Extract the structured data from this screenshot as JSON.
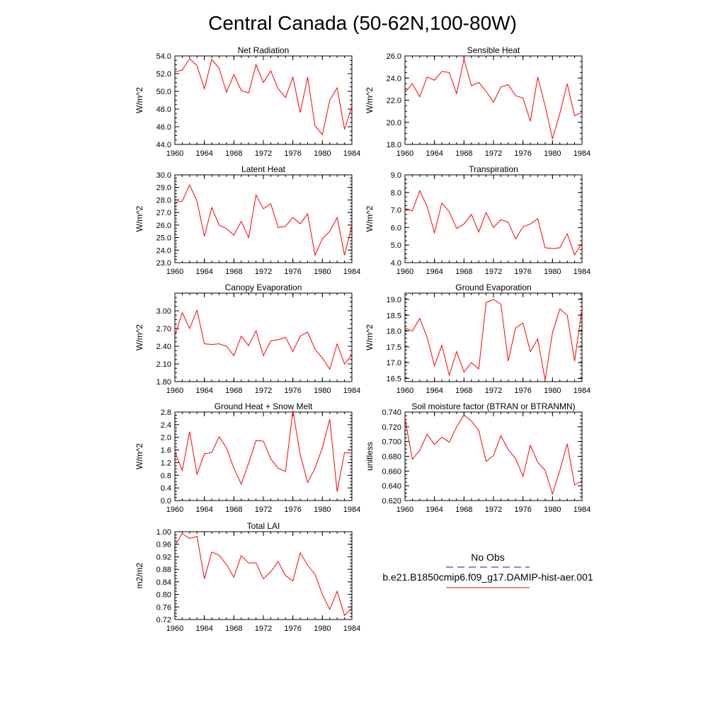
{
  "page": {
    "title": "Central Canada (50-62N,100-80W)"
  },
  "legend": {
    "obs_label": "No Obs",
    "obs_color": "#4040c0",
    "model_label": "b.e21.B1850cmip6.f09_g17.DAMIP-hist-aer.001",
    "model_color": "#ff0000"
  },
  "chart_data": [
    {
      "type": "line",
      "title": "Net Radiation",
      "ylabel": "W/m^2",
      "xlim": [
        1960,
        1984
      ],
      "ylim": [
        44.0,
        54.0
      ],
      "xticks": [
        "1960",
        "1964",
        "1968",
        "1972",
        "1976",
        "1980",
        "1984"
      ],
      "yticks": [
        "44.0",
        "46.0",
        "48.0",
        "50.0",
        "52.0",
        "54.0"
      ],
      "series": [
        {
          "color": "#ff0000",
          "x": [
            1960,
            1961,
            1962,
            1963,
            1964,
            1965,
            1966,
            1967,
            1968,
            1969,
            1970,
            1971,
            1972,
            1973,
            1974,
            1975,
            1976,
            1977,
            1978,
            1979,
            1980,
            1981,
            1982,
            1983,
            1984
          ],
          "values": [
            52.2,
            52.4,
            53.7,
            52.9,
            50.3,
            53.6,
            52.6,
            49.9,
            51.9,
            50.1,
            49.8,
            53.0,
            51.0,
            52.3,
            50.3,
            49.3,
            51.6,
            47.6,
            51.6,
            46.1,
            45.1,
            49.0,
            50.4,
            45.7,
            48.3
          ]
        }
      ]
    },
    {
      "type": "line",
      "title": "Sensible Heat",
      "ylabel": "W/m^2",
      "xlim": [
        1960,
        1984
      ],
      "ylim": [
        18.0,
        26.0
      ],
      "xticks": [
        "1960",
        "1964",
        "1968",
        "1972",
        "1976",
        "1980",
        "1984"
      ],
      "yticks": [
        "18.0",
        "20.0",
        "22.0",
        "24.0",
        "26.0"
      ],
      "series": [
        {
          "color": "#ff0000",
          "x": [
            1960,
            1961,
            1962,
            1963,
            1964,
            1965,
            1966,
            1967,
            1968,
            1969,
            1970,
            1971,
            1972,
            1973,
            1974,
            1975,
            1976,
            1977,
            1978,
            1979,
            1980,
            1981,
            1982,
            1983,
            1984
          ],
          "values": [
            22.7,
            23.5,
            22.3,
            24.1,
            23.8,
            24.6,
            24.5,
            22.6,
            25.7,
            23.3,
            23.6,
            22.8,
            21.8,
            23.2,
            23.4,
            22.4,
            22.2,
            20.1,
            24.1,
            21.5,
            18.5,
            20.8,
            23.5,
            20.6,
            20.9
          ]
        }
      ]
    },
    {
      "type": "line",
      "title": "Latent Heat",
      "ylabel": "W/m^2",
      "xlim": [
        1960,
        1984
      ],
      "ylim": [
        23.0,
        30.0
      ],
      "xticks": [
        "1960",
        "1964",
        "1968",
        "1972",
        "1976",
        "1980",
        "1984"
      ],
      "yticks": [
        "23.0",
        "24.0",
        "25.0",
        "26.0",
        "27.0",
        "28.0",
        "29.0",
        "30.0"
      ],
      "series": [
        {
          "color": "#ff0000",
          "x": [
            1960,
            1961,
            1962,
            1963,
            1964,
            1965,
            1966,
            1967,
            1968,
            1969,
            1970,
            1971,
            1972,
            1973,
            1974,
            1975,
            1976,
            1977,
            1978,
            1979,
            1980,
            1981,
            1982,
            1983,
            1984
          ],
          "values": [
            27.8,
            27.9,
            29.2,
            27.9,
            25.1,
            27.4,
            26.0,
            25.7,
            25.2,
            26.3,
            25.0,
            28.4,
            27.3,
            27.7,
            25.8,
            25.9,
            26.6,
            26.1,
            26.9,
            23.6,
            24.9,
            25.5,
            26.6,
            23.6,
            26.0
          ]
        }
      ]
    },
    {
      "type": "line",
      "title": "Transpiration",
      "ylabel": "W/m^2",
      "xlim": [
        1960,
        1984
      ],
      "ylim": [
        4.0,
        9.0
      ],
      "xticks": [
        "1960",
        "1964",
        "1968",
        "1972",
        "1976",
        "1980",
        "1984"
      ],
      "yticks": [
        "4.0",
        "5.0",
        "6.0",
        "7.0",
        "8.0",
        "9.0"
      ],
      "series": [
        {
          "color": "#ff0000",
          "x": [
            1960,
            1961,
            1962,
            1963,
            1964,
            1965,
            1966,
            1967,
            1968,
            1969,
            1970,
            1971,
            1972,
            1973,
            1974,
            1975,
            1976,
            1977,
            1978,
            1979,
            1980,
            1981,
            1982,
            1983,
            1984
          ],
          "values": [
            7.1,
            6.95,
            8.1,
            7.2,
            5.7,
            7.4,
            6.9,
            5.95,
            6.2,
            6.75,
            5.75,
            6.85,
            6.0,
            6.45,
            6.3,
            5.35,
            6.05,
            6.2,
            6.5,
            4.85,
            4.8,
            4.85,
            5.65,
            4.45,
            5.1
          ]
        }
      ]
    },
    {
      "type": "line",
      "title": "Canopy Evaporation",
      "ylabel": "W/m^2",
      "xlim": [
        1960,
        1984
      ],
      "ylim": [
        1.8,
        3.3
      ],
      "xticks": [
        "1960",
        "1964",
        "1968",
        "1972",
        "1976",
        "1980",
        "1984"
      ],
      "yticks": [
        "1.80",
        "2.10",
        "2.40",
        "2.70",
        "3.00"
      ],
      "series": [
        {
          "color": "#ff0000",
          "x": [
            1960,
            1961,
            1962,
            1963,
            1964,
            1965,
            1966,
            1967,
            1968,
            1969,
            1970,
            1971,
            1972,
            1973,
            1974,
            1975,
            1976,
            1977,
            1978,
            1979,
            1980,
            1981,
            1982,
            1983,
            1984
          ],
          "values": [
            2.58,
            2.97,
            2.7,
            3.01,
            2.44,
            2.43,
            2.44,
            2.4,
            2.24,
            2.57,
            2.41,
            2.66,
            2.24,
            2.49,
            2.51,
            2.55,
            2.31,
            2.57,
            2.64,
            2.35,
            2.2,
            2.01,
            2.44,
            2.1,
            2.25
          ]
        }
      ]
    },
    {
      "type": "line",
      "title": "Ground Evaporation",
      "ylabel": "W/m^2",
      "xlim": [
        1960,
        1984
      ],
      "ylim": [
        16.4,
        19.2
      ],
      "xticks": [
        "1960",
        "1964",
        "1968",
        "1972",
        "1976",
        "1980",
        "1984"
      ],
      "yticks": [
        "16.5",
        "17.0",
        "17.5",
        "18.0",
        "18.5",
        "19.0"
      ],
      "series": [
        {
          "color": "#ff0000",
          "x": [
            1960,
            1961,
            1962,
            1963,
            1964,
            1965,
            1966,
            1967,
            1968,
            1969,
            1970,
            1971,
            1972,
            1973,
            1974,
            1975,
            1976,
            1977,
            1978,
            1979,
            1980,
            1981,
            1982,
            1983,
            1984
          ],
          "values": [
            18.1,
            18.0,
            18.4,
            17.8,
            16.9,
            17.55,
            16.6,
            17.35,
            16.7,
            17.0,
            16.8,
            18.9,
            19.0,
            18.85,
            17.05,
            18.1,
            18.25,
            17.35,
            17.75,
            16.45,
            17.95,
            18.7,
            18.5,
            17.05,
            18.7
          ]
        }
      ]
    },
    {
      "type": "line",
      "title": "Ground Heat + Snow Melt",
      "ylabel": "W/m^2",
      "xlim": [
        1960,
        1984
      ],
      "ylim": [
        0.0,
        2.8
      ],
      "xticks": [
        "1960",
        "1964",
        "1968",
        "1972",
        "1976",
        "1980",
        "1984"
      ],
      "yticks": [
        "0.0",
        "0.4",
        "0.8",
        "1.2",
        "1.6",
        "2.0",
        "2.4",
        "2.8"
      ],
      "series": [
        {
          "color": "#ff0000",
          "x": [
            1960,
            1961,
            1962,
            1963,
            1964,
            1965,
            1966,
            1967,
            1968,
            1969,
            1970,
            1971,
            1972,
            1973,
            1974,
            1975,
            1976,
            1977,
            1978,
            1979,
            1980,
            1981,
            1982,
            1983,
            1984
          ],
          "values": [
            1.55,
            0.95,
            2.18,
            0.83,
            1.48,
            1.52,
            2.02,
            1.66,
            1.02,
            0.52,
            1.18,
            1.9,
            1.88,
            1.32,
            1.02,
            0.92,
            2.85,
            1.45,
            0.57,
            1.02,
            1.67,
            2.57,
            0.28,
            1.52,
            1.5
          ]
        }
      ]
    },
    {
      "type": "line",
      "title": "Soil moisture factor (BTRAN or BTRANMN)",
      "ylabel": "unitless",
      "xlim": [
        1960,
        1984
      ],
      "ylim": [
        0.62,
        0.74
      ],
      "xticks": [
        "1960",
        "1964",
        "1968",
        "1972",
        "1976",
        "1980",
        "1984"
      ],
      "yticks": [
        "0.620",
        "0.640",
        "0.660",
        "0.680",
        "0.700",
        "0.720",
        "0.740"
      ],
      "series": [
        {
          "color": "#ff0000",
          "x": [
            1960,
            1961,
            1962,
            1963,
            1964,
            1965,
            1966,
            1967,
            1968,
            1969,
            1970,
            1971,
            1972,
            1973,
            1974,
            1975,
            1976,
            1977,
            1978,
            1979,
            1980,
            1981,
            1982,
            1983,
            1984
          ],
          "values": [
            0.731,
            0.676,
            0.688,
            0.71,
            0.696,
            0.706,
            0.699,
            0.72,
            0.736,
            0.728,
            0.715,
            0.673,
            0.681,
            0.708,
            0.689,
            0.677,
            0.653,
            0.695,
            0.672,
            0.661,
            0.629,
            0.661,
            0.697,
            0.641,
            0.647
          ]
        }
      ]
    },
    {
      "type": "line",
      "title": "Total LAI",
      "ylabel": "m2/m2",
      "xlim": [
        1960,
        1984
      ],
      "ylim": [
        0.72,
        1.0
      ],
      "xticks": [
        "1960",
        "1964",
        "1968",
        "1972",
        "1976",
        "1980",
        "1984"
      ],
      "yticks": [
        "0.72",
        "0.76",
        "0.80",
        "0.84",
        "0.88",
        "0.92",
        "0.96",
        "1.00"
      ],
      "series": [
        {
          "color": "#ff0000",
          "x": [
            1960,
            1961,
            1962,
            1963,
            1964,
            1965,
            1966,
            1967,
            1968,
            1969,
            1970,
            1971,
            1972,
            1973,
            1974,
            1975,
            1976,
            1977,
            1978,
            1979,
            1980,
            1981,
            1982,
            1983,
            1984
          ],
          "values": [
            0.955,
            0.995,
            0.978,
            0.985,
            0.85,
            0.935,
            0.925,
            0.895,
            0.855,
            0.924,
            0.9,
            0.901,
            0.85,
            0.872,
            0.905,
            0.86,
            0.843,
            0.933,
            0.893,
            0.864,
            0.8,
            0.752,
            0.81,
            0.733,
            0.757
          ]
        }
      ]
    }
  ]
}
